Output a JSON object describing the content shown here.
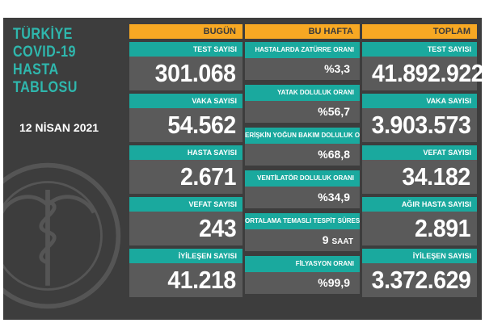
{
  "title_lines": [
    "TÜRKİYE",
    "COVID-19",
    "HASTA",
    "TABLOSU"
  ],
  "date": "12 NİSAN 2021",
  "columns": {
    "today": {
      "header": "BUGÜN",
      "cards": [
        {
          "label": "TEST SAYISI",
          "value": "301.068"
        },
        {
          "label": "VAKA SAYISI",
          "value": "54.562"
        },
        {
          "label": "HASTA SAYISI",
          "value": "2.671"
        },
        {
          "label": "VEFAT SAYISI",
          "value": "243"
        },
        {
          "label": "İYİLEŞEN SAYISI",
          "value": "41.218"
        }
      ]
    },
    "week": {
      "header": "BU HAFTA",
      "cards": [
        {
          "label": "HASTALARDA ZATÜRRE ORANI",
          "value": "%3,3",
          "unit": ""
        },
        {
          "label": "YATAK DOLULUK ORANI",
          "value": "%56,7",
          "unit": ""
        },
        {
          "label": "ERİŞKİN YOĞUN BAKIM DOLULUK ORANI",
          "value": "%68,8",
          "unit": ""
        },
        {
          "label": "VENTİLATÖR DOLULUK ORANI",
          "value": "%34,9",
          "unit": ""
        },
        {
          "label": "ORTALAMA TEMASLI TESPİT SÜRESİ",
          "value": "9",
          "unit": "SAAT"
        },
        {
          "label": "FİLYASYON ORANI",
          "value": "%99,9",
          "unit": ""
        }
      ]
    },
    "total": {
      "header": "TOPLAM",
      "cards": [
        {
          "label": "TEST SAYISI",
          "value": "41.892.922"
        },
        {
          "label": "VAKA SAYISI",
          "value": "3.903.573"
        },
        {
          "label": "VEFAT SAYISI",
          "value": "34.182"
        },
        {
          "label": "AĞIR HASTA SAYISI",
          "value": "2.891"
        },
        {
          "label": "İYİLEŞEN SAYISI",
          "value": "3.372.629"
        }
      ]
    }
  },
  "colors": {
    "background": "#3d3d3d",
    "header": "#f7a823",
    "label": "#1aa99e",
    "value_box": "#5a5a5a",
    "title": "#2fb7ad"
  },
  "icons": [
    "ministry-emblem-icon"
  ]
}
